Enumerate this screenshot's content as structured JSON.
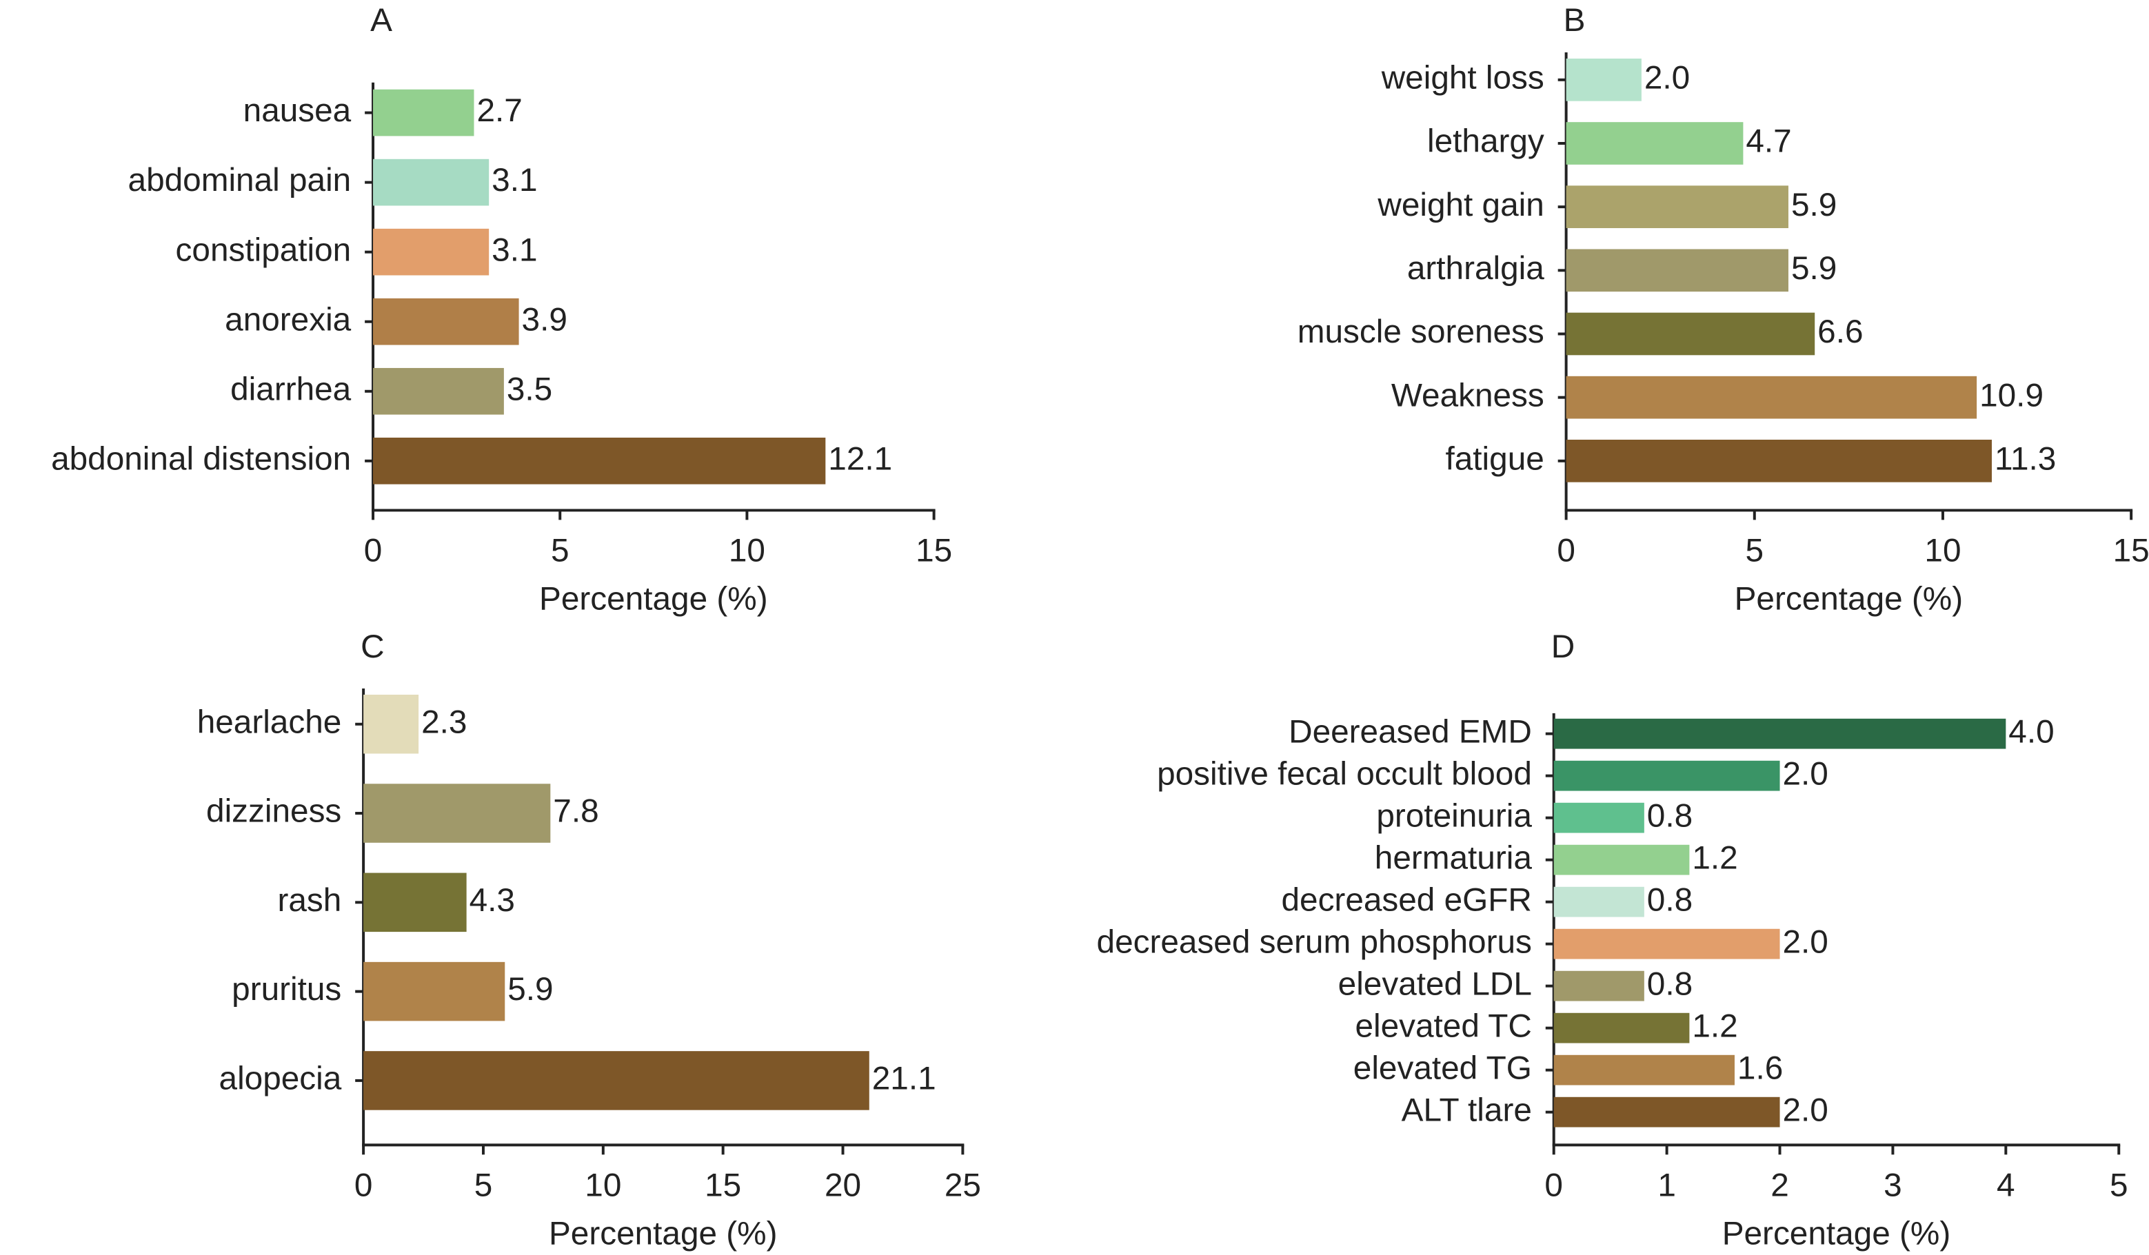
{
  "chart_data": [
    {
      "type": "bar",
      "orientation": "horizontal",
      "title": "A",
      "categories": [
        "nausea",
        "abdominal pain",
        "constipation",
        "anorexia",
        "diarrhea",
        "abdoninal distension"
      ],
      "values": [
        2.7,
        3.1,
        3.1,
        3.9,
        3.5,
        12.1
      ],
      "value_labels": [
        "2.7",
        "3.1",
        "3.1",
        "3.9",
        "3.5",
        "12.1"
      ],
      "colors": [
        "#93d08f",
        "#a6dbc3",
        "#e29e6b",
        "#b07f48",
        "#a0996a",
        "#7e5728"
      ],
      "xlim": [
        0,
        15
      ],
      "xticks": [
        0,
        5,
        10,
        15
      ],
      "xlabel": "Percentage (%)"
    },
    {
      "type": "bar",
      "orientation": "horizontal",
      "title": "B",
      "categories": [
        "weight loss",
        "lethargy",
        "weight gain",
        "arthralgia",
        "muscle soreness",
        "Weakness",
        "fatigue"
      ],
      "values": [
        2.0,
        4.7,
        5.9,
        5.9,
        6.6,
        10.9,
        11.3
      ],
      "value_labels": [
        "2.0",
        "4.7",
        "5.9",
        "5.9",
        "6.6",
        "10.9",
        "11.3"
      ],
      "colors": [
        "#b5e3cc",
        "#93d08f",
        "#aba36b",
        "#a0996a",
        "#767335",
        "#b0834a",
        "#7e5728"
      ],
      "xlim": [
        0,
        15
      ],
      "xticks": [
        0,
        5,
        10,
        15
      ],
      "xlabel": "Percentage (%)"
    },
    {
      "type": "bar",
      "orientation": "horizontal",
      "title": "C",
      "categories": [
        "hearlache",
        "dizziness",
        "rash",
        "pruritus",
        "alopecia"
      ],
      "values": [
        2.3,
        7.8,
        4.3,
        5.9,
        21.1
      ],
      "value_labels": [
        "2.3",
        "7.8",
        "4.3",
        "5.9",
        "21.1"
      ],
      "colors": [
        "#e3dcb9",
        "#a0996a",
        "#767335",
        "#b0834a",
        "#7e5728"
      ],
      "xlim": [
        0,
        25
      ],
      "xticks": [
        0,
        5,
        10,
        15,
        20,
        25
      ],
      "xlabel": "Percentage (%)"
    },
    {
      "type": "bar",
      "orientation": "horizontal",
      "title": "D",
      "categories": [
        "Deereased EMD",
        "positive fecal occult blood",
        "proteinuria",
        "hermaturia",
        "decreased eGFR",
        "decreased serum phosphorus",
        "elevated LDL",
        "elevated TC",
        "elevated TG",
        "ALT tlare"
      ],
      "values": [
        4.0,
        2.0,
        0.8,
        1.2,
        0.8,
        2.0,
        0.8,
        1.2,
        1.6,
        2.0
      ],
      "value_labels": [
        "4.0",
        "2.0",
        "0.8",
        "1.2",
        "0.8",
        "2.0",
        "0.8",
        "1.2",
        "1.6",
        "2.0"
      ],
      "colors": [
        "#2a6a45",
        "#3a9466",
        "#5fc08e",
        "#93d08f",
        "#c3e5d4",
        "#e29e6b",
        "#a0996a",
        "#767335",
        "#b0834a",
        "#7e5728"
      ],
      "xlim": [
        0,
        5
      ],
      "xticks": [
        0,
        1,
        2,
        3,
        4,
        5
      ],
      "xlabel": "Percentage (%)"
    }
  ]
}
